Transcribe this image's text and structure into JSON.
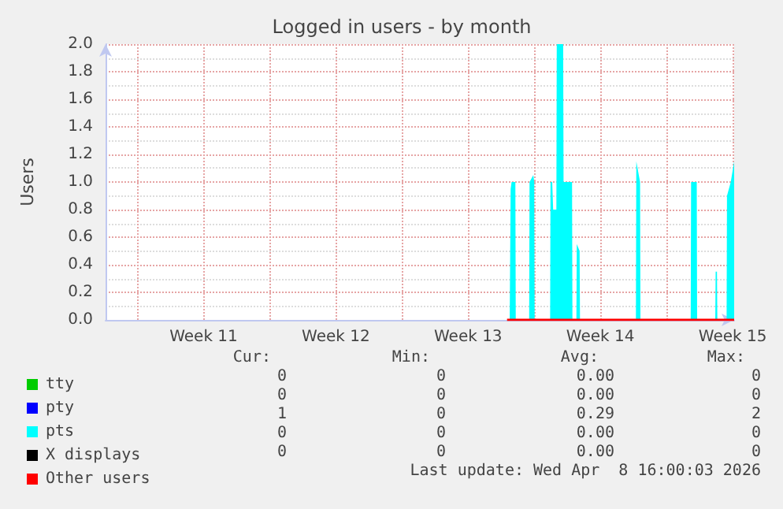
{
  "chart_data": {
    "type": "line",
    "title": "Logged in users - by month",
    "ylabel": "Users",
    "xlim": [
      "2026-03-07T07:26",
      "2026-04-09T13:55"
    ],
    "xticks": [
      {
        "value": "2026-03-09T00:00",
        "label": null
      },
      {
        "value": "2026-03-12T12:00",
        "label": "Week 11"
      },
      {
        "value": "2026-03-16T00:00",
        "label": null
      },
      {
        "value": "2026-03-19T12:00",
        "label": "Week 12"
      },
      {
        "value": "2026-03-23T00:00",
        "label": null
      },
      {
        "value": "2026-03-26T12:00",
        "label": "Week 13"
      },
      {
        "value": "2026-03-30T00:00",
        "label": null
      },
      {
        "value": "2026-04-02T12:00",
        "label": "Week 14"
      },
      {
        "value": "2026-04-06T00:00",
        "label": null
      },
      {
        "value": "2026-04-09T12:00",
        "label": "Week 15"
      }
    ],
    "ylim": [
      0,
      2
    ],
    "yticks": [
      {
        "value": 0,
        "label": "0.0"
      },
      0.2,
      0.4,
      0.6,
      0.8,
      {
        "value": 1,
        "label": "1.0"
      },
      1.2,
      1.4,
      1.6,
      1.8,
      {
        "value": 2,
        "label": "2.0"
      }
    ],
    "grid": true,
    "legend": "bottom left",
    "marker": "none",
    "series": [
      {
        "name": "tty",
        "color": "#00cc00"
      },
      {
        "name": "pty",
        "color": "#0000ff"
      },
      {
        "name": "pts",
        "type": "area",
        "color": "#00ffff",
        "x": [
          "2026-03-28T13:26",
          "2026-03-28T16:48",
          "2026-03-28T18:00",
          "2026-03-28T19:12",
          "2026-03-29T00:00",
          "2026-03-29T00:29",
          "2026-03-29T17:31",
          "2026-03-29T18:00",
          "2026-03-29T22:48",
          "2026-03-30T00:00",
          "2026-03-30T00:29",
          "2026-03-30T20:10",
          "2026-03-30T20:38",
          "2026-03-30T22:48",
          "2026-03-31T00:00",
          "2026-03-31T04:05",
          "2026-03-31T04:34",
          "2026-03-31T12:43",
          "2026-03-31T13:12",
          "2026-04-01T00:00",
          "2026-04-01T00:29",
          "2026-04-01T05:31",
          "2026-04-01T06:00",
          "2026-04-01T09:36",
          "2026-04-01T10:05",
          "2026-04-04T09:07",
          "2026-04-04T09:36",
          "2026-04-04T14:24",
          "2026-04-04T14:53",
          "2026-04-07T06:43",
          "2026-04-07T07:12",
          "2026-04-07T14:24",
          "2026-04-07T14:53",
          "2026-04-08T13:55",
          "2026-04-08T14:24",
          "2026-04-08T16:05",
          "2026-04-08T16:34",
          "2026-04-09T04:19",
          "2026-04-09T04:48",
          "2026-04-09T09:36",
          "2026-04-09T13:55"
        ],
        "values": [
          0,
          0,
          0.95,
          1,
          1,
          0,
          0,
          1,
          1.05,
          1,
          0,
          0,
          1,
          1,
          0.8,
          0.8,
          2,
          2,
          1,
          1,
          0,
          0,
          0.55,
          0.5,
          0,
          0,
          1.15,
          1,
          0,
          0,
          1,
          1,
          0,
          0,
          0.35,
          0.35,
          0,
          0,
          0.9,
          1.0,
          1.15
        ]
      },
      {
        "name": "X displays",
        "color": "#000000"
      },
      {
        "name": "Other users",
        "color": "#ff0000",
        "x": [
          "2026-03-28T13:26",
          "2026-04-09T13:55"
        ],
        "values": [
          0,
          0
        ]
      }
    ],
    "annotations": [
      "Cur:",
      "Min:",
      "Avg:",
      "Max:",
      "0",
      "0",
      "0.00",
      "0",
      "0",
      "0",
      "0.00",
      "0",
      "1",
      "0",
      "0.29",
      "2",
      "0",
      "0",
      "0.00",
      "0",
      "0",
      "0",
      "0.00",
      "0",
      "Last update: Wed Apr  8 16:00:03 2026"
    ]
  }
}
